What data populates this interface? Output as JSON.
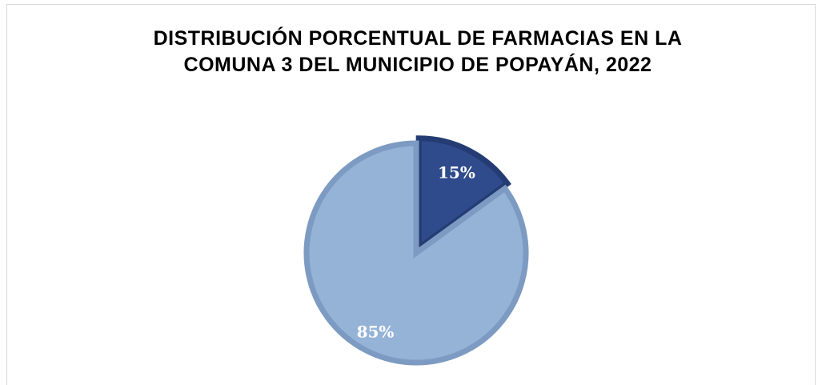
{
  "chart_data": {
    "type": "pie",
    "title": [
      "DISTRIBUCIÓN PORCENTUAL DE FARMACIAS EN LA",
      "COMUNA 3 DEL MUNICIPIO DE POPAYÁN, 2022"
    ],
    "values": [
      15,
      85
    ],
    "value_labels": [
      "15%",
      "85%"
    ],
    "colors": [
      "#2f4b8c",
      "#95b3d7"
    ],
    "edge_colors": [
      "#243c73",
      "#7d9bc2"
    ],
    "start_angle": 0,
    "direction": "clockwise"
  }
}
